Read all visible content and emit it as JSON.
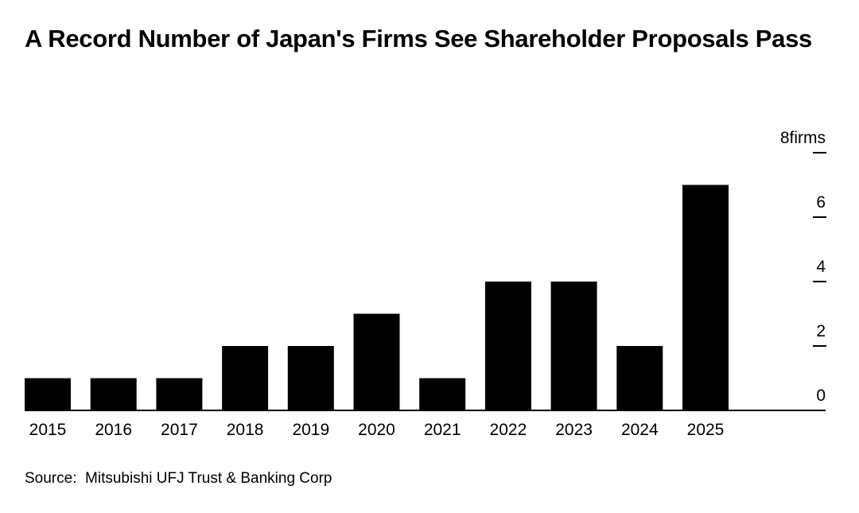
{
  "chart_data": {
    "type": "bar",
    "title": "A Record Number of Japan's Firms See Shareholder Proposals Pass",
    "categories": [
      "2015",
      "2016",
      "2017",
      "2018",
      "2019",
      "2020",
      "2021",
      "2022",
      "2023",
      "2024",
      "2025"
    ],
    "values": [
      1,
      1,
      1,
      2,
      2,
      3,
      1,
      4,
      4,
      2,
      7
    ],
    "y_ticks": [
      0,
      2,
      4,
      6,
      8
    ],
    "y_tick_labels": [
      "0",
      "2",
      "4",
      "6",
      "8firms"
    ],
    "ylim": [
      0,
      8
    ],
    "y_axis_position": "right",
    "grid": false,
    "bar_color": "#000000",
    "source": "Source:  Mitsubishi UFJ Trust & Banking Corp"
  }
}
